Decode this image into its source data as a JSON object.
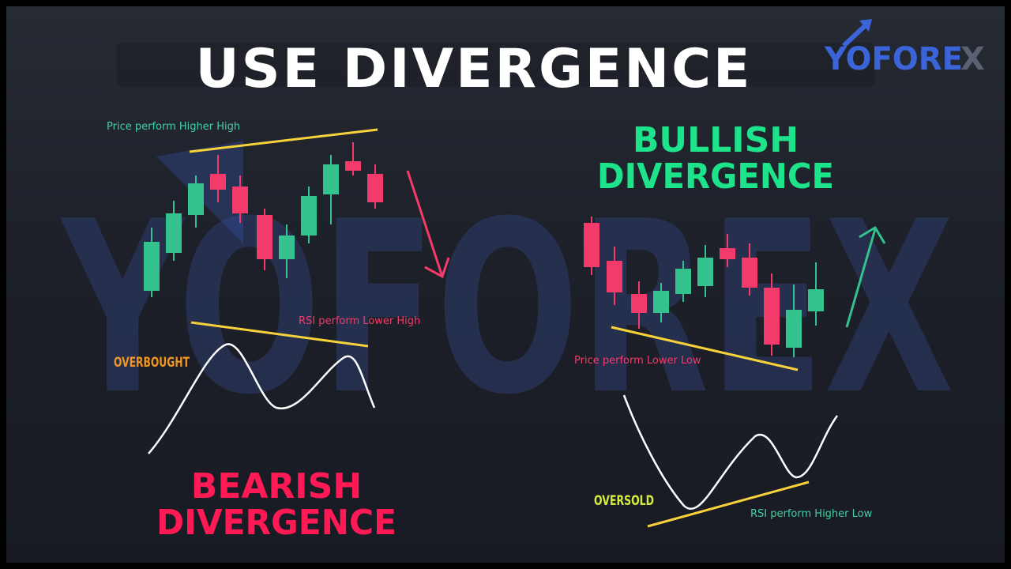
{
  "title": "USE DIVERGENCE",
  "logo": {
    "text_main": "YOFORE",
    "text_x": "X"
  },
  "watermark": "YOFOREX",
  "bearish": {
    "heading_line1": "BEARISH",
    "heading_line2": "DIVERGENCE",
    "price_label": "Price perform Higher High",
    "rsi_label": "RSI perform Lower High",
    "zone_label": "OVERBOUGHT"
  },
  "bullish": {
    "heading_line1": "BULLISH",
    "heading_line2": "DIVERGENCE",
    "price_label": "Price perform Lower Low",
    "rsi_label": "RSI perform Higher Low",
    "zone_label": "OVERSOLD"
  },
  "colors": {
    "bull_candle": "#34c28f",
    "bear_candle": "#f23b6b",
    "trendline": "#f7d23a",
    "bullish_heading": "#1de48b",
    "bearish_heading": "#ff1a55",
    "overbought": "#f0961f",
    "oversold": "#d6ec3a",
    "rsi_line": "#ffffff",
    "logo_blue": "#3a64d8",
    "watermark": "#2e3c6e"
  }
}
